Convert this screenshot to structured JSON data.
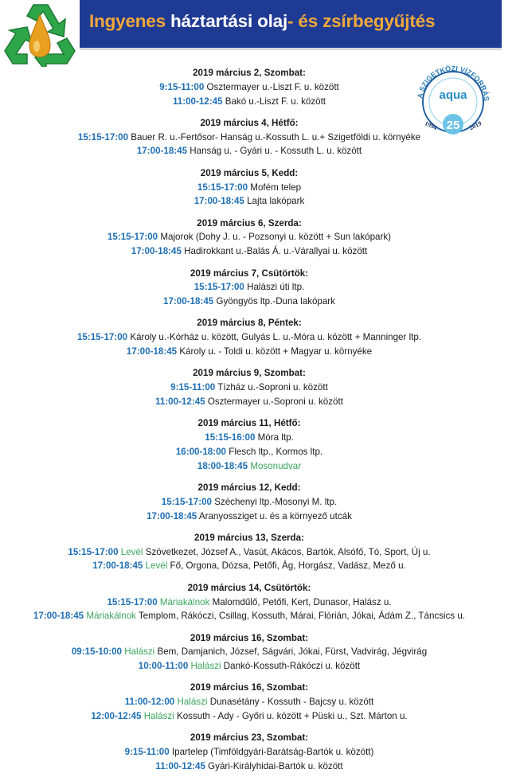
{
  "header": {
    "title_part1": "Ingyenes",
    "title_part2": " háztartási olaj",
    "title_part3": "- és zsírbegyűjtés",
    "colors": {
      "banner": "#1f3a93",
      "accent_orange": "#f2a93b",
      "time_blue": "#1f6fb4",
      "place_green": "#3aa65a"
    }
  },
  "logo_left": {
    "icon": "recycle-oil-drop-icon"
  },
  "logo_right": {
    "icon": "aqua-25-anniversary-logo",
    "text": "A SZIGETKÖZI VÍZFORRÁS",
    "brand": "aqua",
    "years": "1994 25 2019"
  },
  "sections": [
    {
      "date": "2019 március 2, Szombat:",
      "entries": [
        {
          "time": "9:15-11:00",
          "place": "",
          "text": " Osztermayer u.-Liszt F. u. között"
        },
        {
          "time": "11:00-12:45",
          "place": "",
          "text": " Bakó u.-Liszt F. u. között"
        }
      ]
    },
    {
      "date": "2019 március 4, Hétfő:",
      "entries": [
        {
          "time": "15:15-17:00",
          "place": "",
          "text": " Bauer R. u.-Fertősor- Hanság u.-Kossuth L. u.+ Szigetföldi u. környéke"
        },
        {
          "time": "17:00-18:45",
          "place": "",
          "text": " Hanság u. - Gyári u. - Kossuth L. u. között"
        }
      ]
    },
    {
      "date": "2019 március 5, Kedd:",
      "entries": [
        {
          "time": "15:15-17:00",
          "place": "",
          "text": " Mofém telep"
        },
        {
          "time": "17:00-18:45",
          "place": "",
          "text": " Lajta lakópark"
        }
      ]
    },
    {
      "date": "2019 március 6, Szerda:",
      "entries": [
        {
          "time": "15:15-17:00",
          "place": "",
          "text": " Majorok (Dohy J. u. - Pozsonyi u. között + Sun lakópark)"
        },
        {
          "time": "17:00-18:45",
          "place": "",
          "text": " Hadirokkant u.-Balás Á. u.-Várallyai u. között"
        }
      ]
    },
    {
      "date": "2019 március 7, Csütörtök:",
      "entries": [
        {
          "time": "15:15-17:00",
          "place": "",
          "text": " Halászi úti ltp."
        },
        {
          "time": "17:00-18:45",
          "place": "",
          "text": " Gyöngyös ltp.-Duna lakópark"
        }
      ]
    },
    {
      "date": "2019 március 8, Péntek:",
      "entries": [
        {
          "time": "15:15-17:00",
          "place": "",
          "text": " Károly u.-Kórház u. között, Gulyás L. u.-Móra u. között + Manninger ltp."
        },
        {
          "time": "17:00-18:45",
          "place": "",
          "text": " Károly u. - Toldi u. között + Magyar u. környéke"
        }
      ]
    },
    {
      "date": "2019 március 9, Szombat:",
      "entries": [
        {
          "time": "9:15-11:00",
          "place": "",
          "text": " Tízház u.-Soproni u. között"
        },
        {
          "time": "11:00-12:45",
          "place": "",
          "text": " Osztermayer u.-Soproni u. között"
        }
      ]
    },
    {
      "date": "2019 március 11, Hétfő:",
      "entries": [
        {
          "time": "15:15-16:00",
          "place": "",
          "text": " Móra ltp."
        },
        {
          "time": "16:00-18:00",
          "place": "",
          "text": " Flesch ltp., Kormos ltp."
        },
        {
          "time": "18:00-18:45",
          "place": " Mosonudvar",
          "text": ""
        }
      ]
    },
    {
      "date": "2019 március 12, Kedd:",
      "entries": [
        {
          "time": "15:15-17:00",
          "place": "",
          "text": " Széchenyi ltp.-Mosonyi M. ltp."
        },
        {
          "time": "17:00-18:45",
          "place": "",
          "text": " Aranyossziget u. és a környező utcák"
        }
      ]
    },
    {
      "date": "2019 március 13, Szerda:",
      "entries": [
        {
          "time": "15:15-17:00",
          "place": " Levél",
          "text": " Szövetkezet, József A., Vasút, Akácos, Bartók, Alsófő, Tó, Sport, Új u."
        },
        {
          "time": "17:00-18:45",
          "place": " Levél",
          "text": " Fő, Orgona, Dózsa, Petőfi, Ág, Horgász, Vadász, Mező u."
        }
      ]
    },
    {
      "date": "2019 március 14, Csütörtök:",
      "entries": [
        {
          "time": "15:15-17:00",
          "place": " Máriakálnok",
          "text": " Malomdűlő, Petőfi, Kert, Dunasor, Halász u."
        },
        {
          "time": "17:00-18:45",
          "place": " Máriakálnok",
          "text": " Templom, Rákóczi, Csillag, Kossuth, Márai, Flórián, Jókai, Ádám Z., Táncsics u."
        }
      ]
    },
    {
      "date": "2019 március 16, Szombat:",
      "entries": [
        {
          "time": "09:15-10:00",
          "place": " Halászi",
          "text": " Bem, Damjanich, József, Ságvári, Jókai, Fürst, Vadvirág, Jégvirág"
        },
        {
          "time": "10:00-11:00",
          "place": " Halászi",
          "text": " Dankó-Kossuth-Rákóczi u. között"
        }
      ]
    },
    {
      "date": "2019 március 16, Szombat:",
      "entries": [
        {
          "time": "11:00-12:00",
          "place": " Halászi",
          "text": " Dunasétány - Kossuth - Bajcsy u. között"
        },
        {
          "time": "12:00-12:45",
          "place": " Halászi",
          "text": " Kossuth - Ady - Győri u. között + Püski u., Szt. Márton u."
        }
      ]
    },
    {
      "date": "2019 március 23, Szombat:",
      "entries": [
        {
          "time": "9:15-11:00",
          "place": "",
          "text": " Ipartelep (Timföldgyári-Barátság-Bartók u. között)"
        },
        {
          "time": "11:00-12:45",
          "place": "",
          "text": " Gyári-Királyhidai-Bartók u. között"
        }
      ]
    }
  ]
}
